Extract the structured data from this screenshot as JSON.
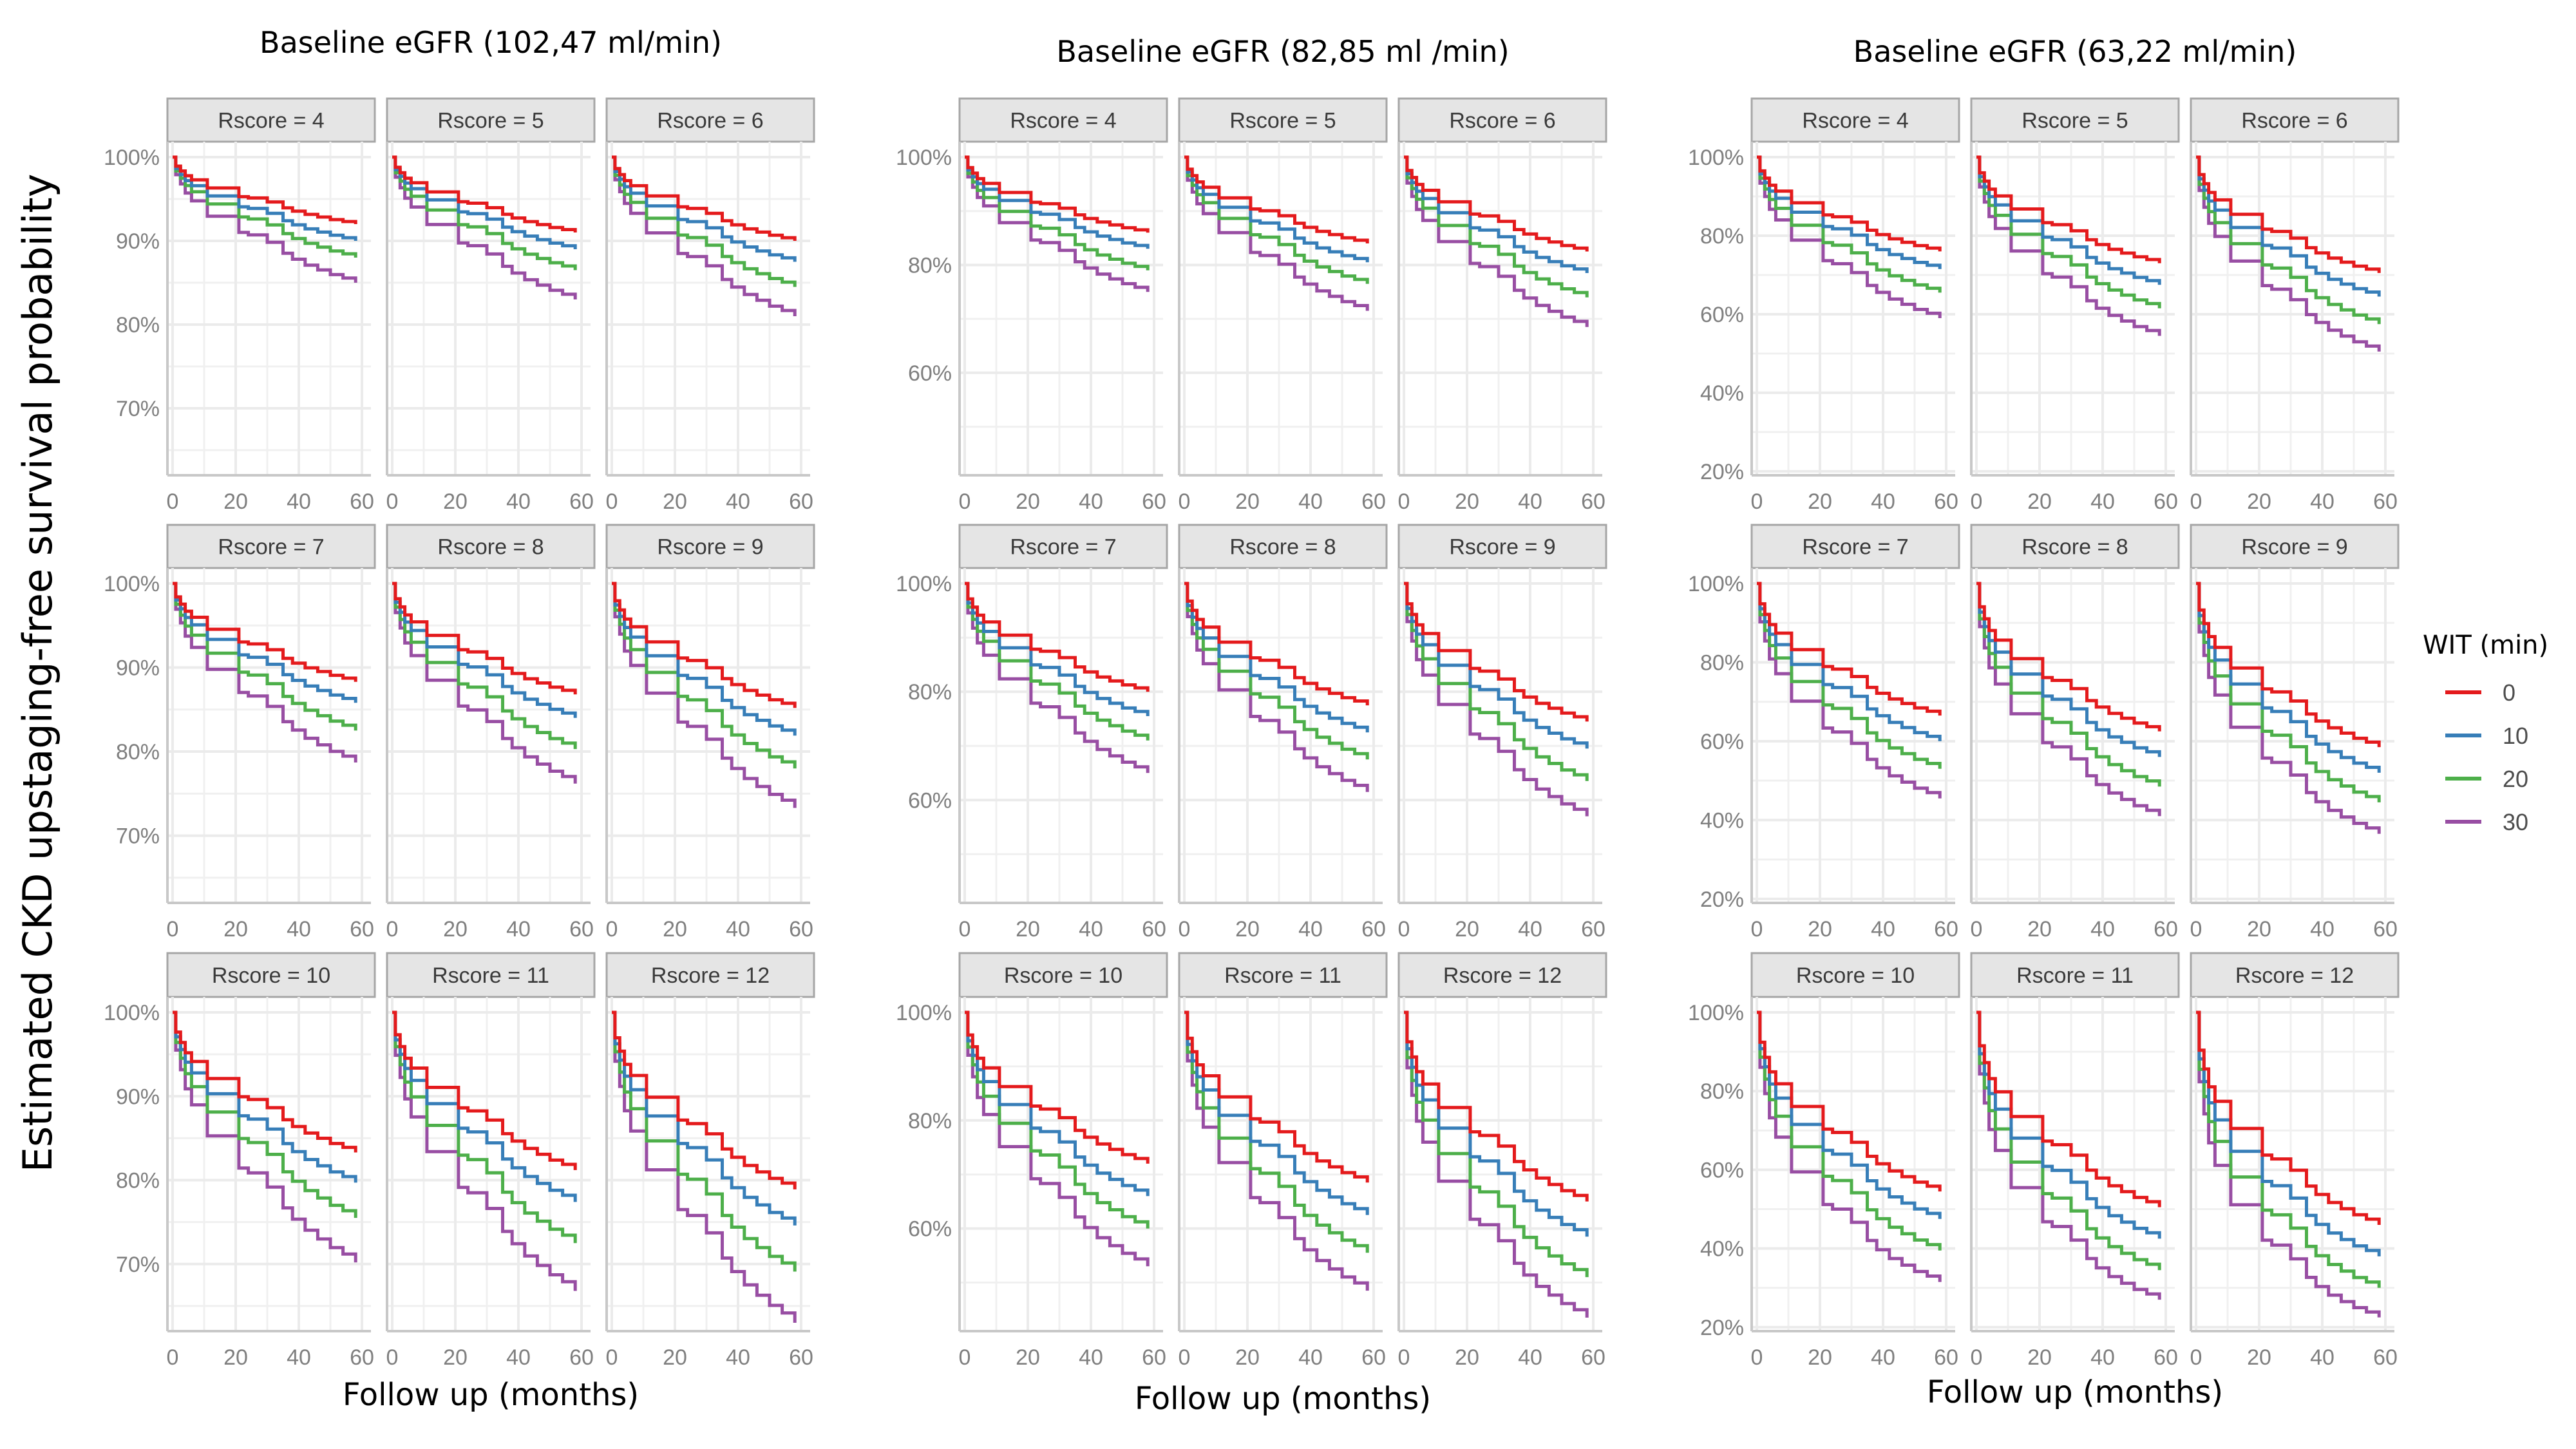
{
  "chart_data": {
    "type": "line",
    "subtype": "kaplan-meier step curves, faceted",
    "ylabel": "Estimated CKD upstaging-free survival probability",
    "xlabel": "Follow up (months)",
    "x_ticks": [
      0,
      20,
      40,
      60
    ],
    "xlim": [
      0,
      60
    ],
    "legend": {
      "title": "WIT (min)",
      "placement": "right",
      "entries": [
        {
          "label": "0",
          "color": "#e41a1c"
        },
        {
          "label": "10",
          "color": "#377eb8"
        },
        {
          "label": "20",
          "color": "#4daf4a"
        },
        {
          "label": "30",
          "color": "#984ea3"
        }
      ]
    },
    "step_times": [
      0,
      1,
      2.5,
      4,
      6,
      11,
      21,
      24,
      30,
      35,
      38,
      42,
      46,
      50,
      54,
      58
    ],
    "cumulative_hazard_fraction": [
      0,
      0.13,
      0.2,
      0.27,
      0.33,
      0.45,
      0.58,
      0.6,
      0.66,
      0.75,
      0.8,
      0.85,
      0.89,
      0.93,
      0.96,
      1
    ],
    "groups": [
      {
        "title": "Baseline eGFR (102,47 ml/min)",
        "ylim": [
          62,
          100
        ],
        "y_ticks": [
          70,
          80,
          90,
          100
        ],
        "y_tick_labels": [
          "70%",
          "80%",
          "90%",
          "100%"
        ],
        "y_minor": [
          65,
          75,
          85,
          95
        ],
        "panels": [
          {
            "label": "Rscore = 4",
            "end_survival": [
              92.0,
              90.0,
              88.0,
              85.0
            ]
          },
          {
            "label": "Rscore = 5",
            "end_survival": [
              91.0,
              89.0,
              86.5,
              83.0
            ]
          },
          {
            "label": "Rscore = 6",
            "end_survival": [
              90.0,
              87.5,
              84.5,
              81.0
            ]
          },
          {
            "label": "Rscore = 7",
            "end_survival": [
              88.3,
              85.8,
              82.5,
              78.7
            ]
          },
          {
            "label": "Rscore = 8",
            "end_survival": [
              86.8,
              84.0,
              80.3,
              76.2
            ]
          },
          {
            "label": "Rscore = 9",
            "end_survival": [
              85.2,
              81.9,
              78.0,
              73.3
            ]
          },
          {
            "label": "Rscore = 10",
            "end_survival": [
              83.3,
              79.7,
              75.5,
              70.2
            ]
          },
          {
            "label": "Rscore = 11",
            "end_survival": [
              81.2,
              77.4,
              72.5,
              66.8
            ]
          },
          {
            "label": "Rscore = 12",
            "end_survival": [
              78.9,
              74.6,
              69.1,
              63.0
            ]
          }
        ]
      },
      {
        "title": "Baseline eGFR (82,85 ml /min)",
        "ylim": [
          41,
          100
        ],
        "y_ticks": [
          60,
          80,
          100
        ],
        "y_tick_labels": [
          "60%",
          "80%",
          "100%"
        ],
        "y_minor": [
          50,
          70,
          90
        ],
        "panels": [
          {
            "label": "Rscore = 4",
            "end_survival": [
              86.0,
              83.0,
              79.0,
              75.0
            ]
          },
          {
            "label": "Rscore = 5",
            "end_survival": [
              84.0,
              80.5,
              76.5,
              71.5
            ]
          },
          {
            "label": "Rscore = 6",
            "end_survival": [
              82.5,
              78.5,
              74.0,
              68.5
            ]
          },
          {
            "label": "Rscore = 7",
            "end_survival": [
              80.0,
              75.5,
              71.0,
              65.0
            ]
          },
          {
            "label": "Rscore = 8",
            "end_survival": [
              77.5,
              72.5,
              67.5,
              61.5
            ]
          },
          {
            "label": "Rscore = 9",
            "end_survival": [
              74.5,
              69.5,
              63.5,
              57.0
            ]
          },
          {
            "label": "Rscore = 10",
            "end_survival": [
              72.0,
              66.0,
              60.0,
              53.0
            ]
          },
          {
            "label": "Rscore = 11",
            "end_survival": [
              68.5,
              62.5,
              55.5,
              48.5
            ]
          },
          {
            "label": "Rscore = 12",
            "end_survival": [
              65.0,
              58.5,
              51.0,
              43.5
            ]
          }
        ]
      },
      {
        "title": "Baseline eGFR (63,22 ml/min)",
        "ylim": [
          19,
          100
        ],
        "y_ticks": [
          20,
          40,
          60,
          80,
          100
        ],
        "y_tick_labels": [
          "20%",
          "40%",
          "60%",
          "80%",
          "100%"
        ],
        "y_minor": [
          30,
          50,
          70,
          90
        ],
        "panels": [
          {
            "label": "Rscore = 4",
            "end_survival": [
              76.0,
              71.5,
              65.5,
              59.0
            ]
          },
          {
            "label": "Rscore = 5",
            "end_survival": [
              73.0,
              67.5,
              61.5,
              54.5
            ]
          },
          {
            "label": "Rscore = 6",
            "end_survival": [
              70.5,
              64.5,
              57.5,
              50.5
            ]
          },
          {
            "label": "Rscore = 7",
            "end_survival": [
              66.5,
              60.0,
              53.0,
              45.5
            ]
          },
          {
            "label": "Rscore = 8",
            "end_survival": [
              62.5,
              56.0,
              48.5,
              41.0
            ]
          },
          {
            "label": "Rscore = 9",
            "end_survival": [
              58.5,
              52.0,
              44.5,
              36.5
            ]
          },
          {
            "label": "Rscore = 10",
            "end_survival": [
              54.5,
              47.5,
              39.5,
              31.5
            ]
          },
          {
            "label": "Rscore = 11",
            "end_survival": [
              50.5,
              42.5,
              34.5,
              27.0
            ]
          },
          {
            "label": "Rscore = 12",
            "end_survival": [
              46.0,
              38.0,
              30.0,
              22.5
            ]
          }
        ]
      }
    ]
  }
}
